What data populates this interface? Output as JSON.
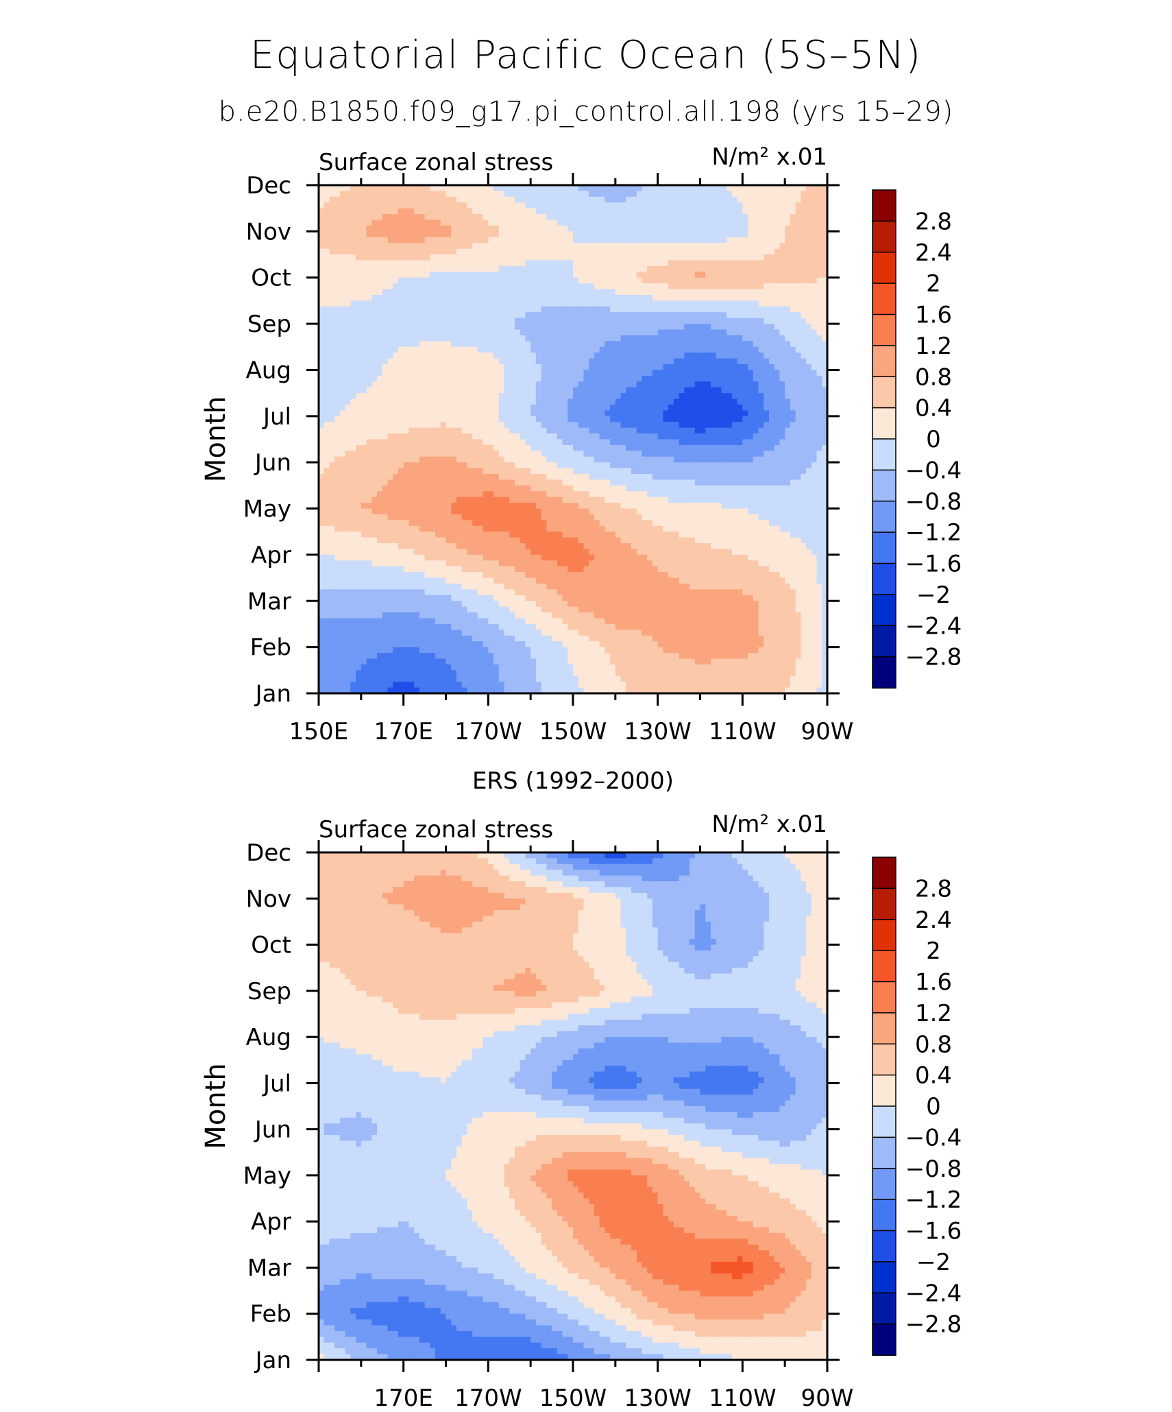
{
  "figure": {
    "title": "Equatorial Pacific Ocean (5S–5N)",
    "subtitle": "b.e20.B1850.f09_g17.pi_control.all.198 (yrs 15–29)"
  },
  "chart_data": [
    {
      "type": "heatmap",
      "title": "",
      "left_label": "Surface zonal stress",
      "right_label": "N/m² x.01",
      "xlabel": "",
      "ylabel": "Month",
      "x_ticks": [
        "150E",
        "170E",
        "170W",
        "150W",
        "130W",
        "110W",
        "90W"
      ],
      "y_ticks": [
        "Jan",
        "Feb",
        "Mar",
        "Apr",
        "May",
        "Jun",
        "Jul",
        "Aug",
        "Sep",
        "Oct",
        "Nov",
        "Dec"
      ],
      "x": [
        150,
        160,
        170,
        180,
        190,
        200,
        210,
        220,
        230,
        240,
        250,
        260,
        270
      ],
      "months": [
        "Jan",
        "Feb",
        "Mar",
        "Apr",
        "May",
        "Jun",
        "Jul",
        "Aug",
        "Sep",
        "Oct",
        "Nov",
        "Dec"
      ],
      "values": [
        [
          -0.9,
          -1.3,
          -1.8,
          -1.4,
          -1.0,
          -0.5,
          -0.1,
          0.3,
          0.6,
          0.6,
          0.5,
          0.4,
          -0.1
        ],
        [
          -1.2,
          -1.1,
          -1.2,
          -1.1,
          -0.8,
          -0.4,
          0.1,
          0.5,
          0.8,
          0.9,
          0.9,
          0.7,
          -0.1
        ],
        [
          -0.5,
          -0.6,
          -0.7,
          -0.5,
          -0.1,
          0.4,
          0.9,
          1.2,
          1.0,
          0.9,
          0.9,
          0.6,
          -0.1
        ],
        [
          0.0,
          0.1,
          0.3,
          0.6,
          0.9,
          1.2,
          1.4,
          1.0,
          0.7,
          0.5,
          0.4,
          0.2,
          -0.1
        ],
        [
          0.6,
          0.8,
          1.0,
          1.2,
          1.5,
          1.3,
          0.9,
          0.5,
          0.2,
          0.1,
          0.0,
          -0.2,
          -0.2
        ],
        [
          0.3,
          0.6,
          0.8,
          0.9,
          0.6,
          0.2,
          -0.2,
          -0.5,
          -0.7,
          -0.8,
          -0.8,
          -0.6,
          -0.3
        ],
        [
          -0.1,
          0.1,
          0.2,
          0.3,
          0.1,
          -0.4,
          -0.9,
          -1.3,
          -1.6,
          -2.0,
          -1.7,
          -0.9,
          -0.5
        ],
        [
          -0.2,
          -0.1,
          0.1,
          0.3,
          0.2,
          -0.3,
          -0.7,
          -1.0,
          -1.2,
          -1.5,
          -1.3,
          -0.7,
          -0.3
        ],
        [
          -0.1,
          -0.1,
          -0.1,
          -0.2,
          -0.3,
          -0.5,
          -0.7,
          -0.7,
          -0.7,
          -0.8,
          -0.6,
          -0.3,
          0.2
        ],
        [
          0.2,
          0.1,
          0.0,
          -0.1,
          -0.1,
          -0.1,
          0.0,
          0.3,
          0.6,
          0.9,
          0.7,
          0.5,
          0.4
        ],
        [
          0.5,
          0.8,
          1.1,
          0.9,
          0.5,
          0.2,
          0.0,
          -0.1,
          -0.2,
          -0.3,
          -0.1,
          0.4,
          0.6
        ],
        [
          0.3,
          0.4,
          0.5,
          0.3,
          0.0,
          -0.2,
          -0.4,
          -0.6,
          -0.3,
          -0.1,
          0.1,
          0.3,
          0.5
        ]
      ],
      "colorbar_labels": [
        "2.8",
        "2.4",
        "2",
        "1.6",
        "1.2",
        "0.8",
        "0.4",
        "0",
        "−0.4",
        "−0.8",
        "−1.2",
        "−1.6",
        "−2",
        "−2.4",
        "−2.8"
      ],
      "contour_levels": [
        -2.8,
        -2.4,
        -2.0,
        -1.6,
        -1.2,
        -0.8,
        -0.4,
        0.0,
        0.4,
        0.8,
        1.2,
        1.6,
        2.0,
        2.4,
        2.8
      ],
      "colors": [
        "#00007f",
        "#001aa6",
        "#0030d0",
        "#1f4fe8",
        "#4478f2",
        "#7199f6",
        "#9ebaf8",
        "#c9dcfb",
        "#fde7d7",
        "#fcc8aa",
        "#faa57e",
        "#f97f50",
        "#f55628",
        "#e03206",
        "#b71c04",
        "#8b0000"
      ],
      "ylim": [
        "Jan",
        "Dec"
      ],
      "xlim": [
        "150E",
        "90W"
      ],
      "grid": false,
      "legend": "right"
    },
    {
      "type": "heatmap",
      "title": "ERS (1992–2000)",
      "left_label": "Surface zonal stress",
      "right_label": "N/m² x.01",
      "xlabel": "",
      "ylabel": "Month",
      "x_ticks": [
        "",
        "170E",
        "170W",
        "150W",
        "130W",
        "110W",
        "90W"
      ],
      "y_ticks": [
        "Jan",
        "Feb",
        "Mar",
        "Apr",
        "May",
        "Jun",
        "Jul",
        "Aug",
        "Sep",
        "Oct",
        "Nov",
        "Dec"
      ],
      "x": [
        150,
        160,
        170,
        180,
        190,
        200,
        210,
        220,
        230,
        240,
        250,
        260,
        270
      ],
      "months": [
        "Jan",
        "Feb",
        "Mar",
        "Apr",
        "May",
        "Jun",
        "Jul",
        "Aug",
        "Sep",
        "Oct",
        "Nov",
        "Dec"
      ],
      "values": [
        [
          0.2,
          -0.5,
          -0.9,
          -1.3,
          -1.4,
          -1.6,
          -1.2,
          -0.8,
          -0.5,
          -0.2,
          0.0,
          0.0,
          0.3
        ],
        [
          -1.0,
          -1.3,
          -1.5,
          -1.2,
          -1.0,
          -0.7,
          -0.3,
          0.2,
          0.7,
          0.9,
          0.9,
          0.8,
          0.4
        ],
        [
          -0.6,
          -0.7,
          -0.6,
          -0.5,
          -0.3,
          0.1,
          0.5,
          0.9,
          1.4,
          1.6,
          1.8,
          1.2,
          0.6
        ],
        [
          -0.2,
          -0.3,
          -0.4,
          -0.2,
          0.1,
          0.4,
          0.9,
          1.4,
          1.3,
          1.0,
          0.8,
          0.6,
          0.3
        ],
        [
          -0.1,
          -0.2,
          -0.2,
          0.0,
          0.2,
          0.8,
          1.3,
          1.4,
          1.1,
          0.6,
          0.4,
          0.2,
          0.0
        ],
        [
          -0.4,
          -0.5,
          -0.3,
          -0.1,
          0.1,
          0.3,
          0.3,
          0.2,
          0.0,
          -0.3,
          -0.5,
          -0.7,
          -0.3
        ],
        [
          -0.2,
          -0.2,
          -0.1,
          0.0,
          -0.2,
          -0.6,
          -1.1,
          -1.5,
          -1.1,
          -1.4,
          -1.5,
          -0.9,
          -0.6
        ],
        [
          0.0,
          0.1,
          0.3,
          0.2,
          0.0,
          -0.3,
          -0.6,
          -0.8,
          -0.8,
          -0.7,
          -0.8,
          -0.6,
          -0.3
        ],
        [
          0.2,
          0.4,
          0.5,
          0.7,
          0.8,
          0.9,
          0.7,
          0.3,
          0.0,
          -0.2,
          -0.2,
          -0.1,
          0.3
        ],
        [
          0.5,
          0.6,
          0.4,
          0.7,
          0.6,
          0.7,
          0.4,
          0.1,
          -0.4,
          -0.9,
          -0.6,
          -0.2,
          0.2
        ],
        [
          0.6,
          0.7,
          0.9,
          1.2,
          0.9,
          0.8,
          0.5,
          0.1,
          -0.5,
          -0.8,
          -0.6,
          -0.3,
          0.2
        ],
        [
          0.8,
          0.7,
          0.6,
          0.5,
          0.3,
          -0.6,
          -1.4,
          -1.8,
          -1.3,
          -0.7,
          -0.3,
          0.0,
          0.3
        ]
      ],
      "colorbar_labels": [
        "2.8",
        "2.4",
        "2",
        "1.6",
        "1.2",
        "0.8",
        "0.4",
        "0",
        "−0.4",
        "−0.8",
        "−1.2",
        "−1.6",
        "−2",
        "−2.4",
        "−2.8"
      ],
      "contour_levels": [
        -2.8,
        -2.4,
        -2.0,
        -1.6,
        -1.2,
        -0.8,
        -0.4,
        0.0,
        0.4,
        0.8,
        1.2,
        1.6,
        2.0,
        2.4,
        2.8
      ],
      "colors": [
        "#00007f",
        "#001aa6",
        "#0030d0",
        "#1f4fe8",
        "#4478f2",
        "#7199f6",
        "#9ebaf8",
        "#c9dcfb",
        "#fde7d7",
        "#fcc8aa",
        "#faa57e",
        "#f97f50",
        "#f55628",
        "#e03206",
        "#b71c04",
        "#8b0000"
      ],
      "ylim": [
        "Jan",
        "Dec"
      ],
      "xlim": [
        "150E",
        "90W"
      ],
      "grid": false,
      "legend": "right"
    }
  ]
}
